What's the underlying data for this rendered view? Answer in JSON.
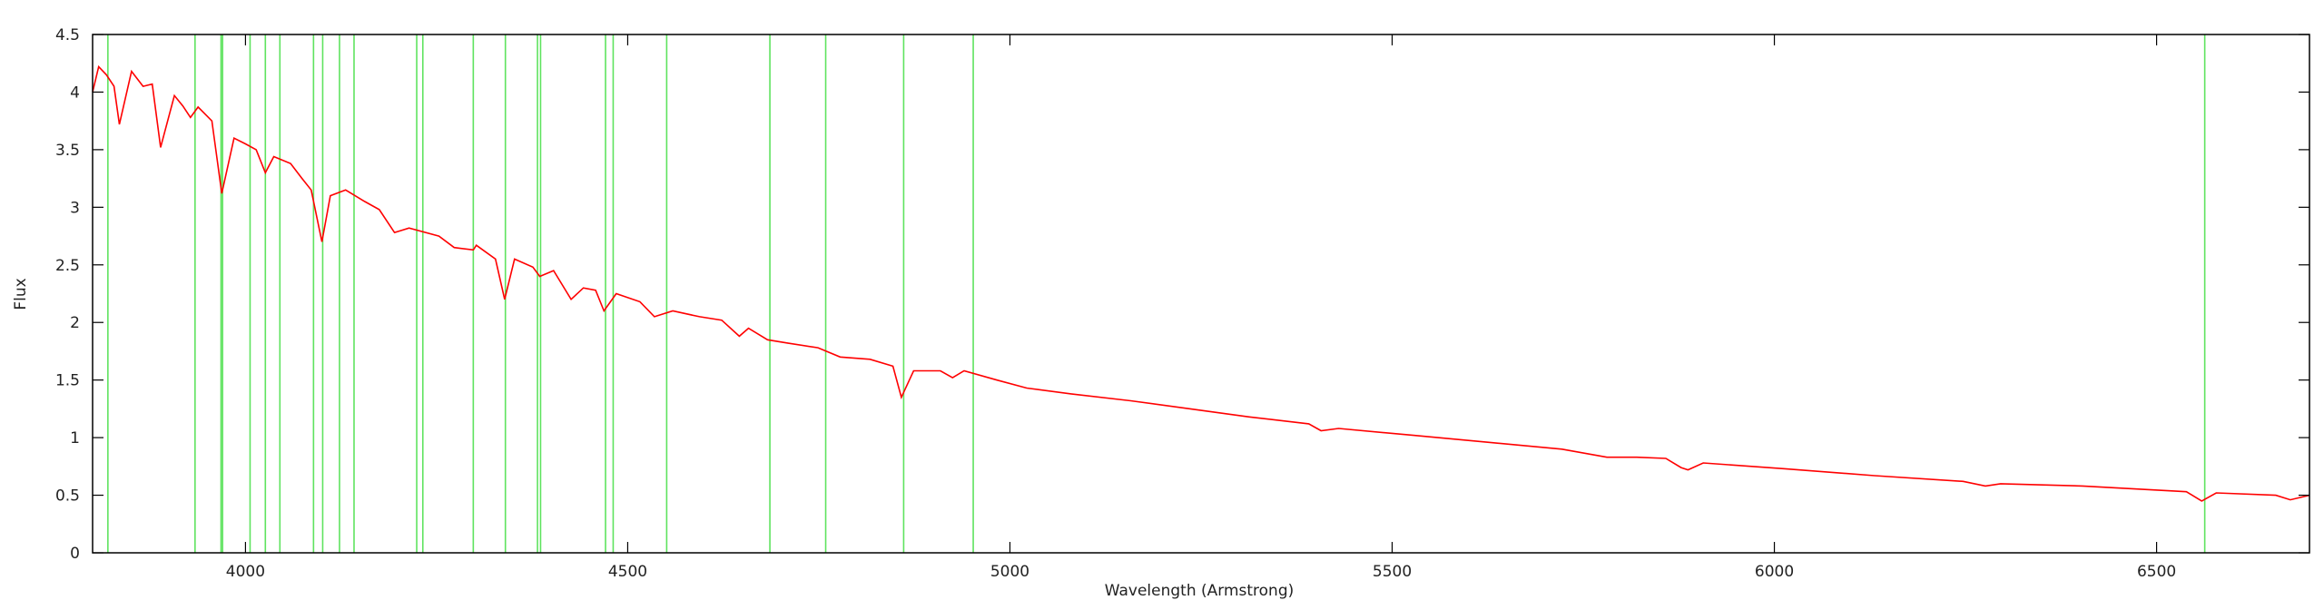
{
  "chart_data": {
    "type": "line",
    "xlabel": "Wavelength (Armstrong)",
    "ylabel": "Flux",
    "xlim": [
      3800,
      6700
    ],
    "ylim": [
      0,
      4.5
    ],
    "xticks": [
      4000,
      4500,
      5000,
      5500,
      6000,
      6500
    ],
    "yticks": [
      0,
      0.5,
      1,
      1.5,
      2,
      2.5,
      3,
      3.5,
      4,
      4.5
    ],
    "line_color": "#5fe35f",
    "lines": [
      3820,
      3934,
      3968,
      3970,
      4006,
      4026,
      4045,
      4089,
      4101,
      4123,
      4142,
      4224,
      4232,
      4298,
      4340,
      4382,
      4386,
      4471,
      4481,
      4551,
      4686,
      4759,
      4861,
      4952,
      6563
    ],
    "series": [
      {
        "color": "#ff0000",
        "x": [
          3800,
          3808,
          3818,
          3828,
          3835,
          3851,
          3866,
          3878,
          3889,
          3907,
          3918,
          3928,
          3938,
          3956,
          3969,
          3985,
          4000,
          4014,
          4026,
          4037,
          4059,
          4074,
          4086,
          4100,
          4111,
          4131,
          4156,
          4175,
          4195,
          4214,
          4253,
          4273,
          4298,
          4302,
          4327,
          4339,
          4352,
          4376,
          4385,
          4403,
          4426,
          4442,
          4458,
          4469,
          4485,
          4516,
          4535,
          4559,
          4594,
          4623,
          4646,
          4658,
          4683,
          4710,
          4749,
          4778,
          4817,
          4847,
          4858,
          4874,
          4909,
          4925,
          4940,
          4983,
          5022,
          5080,
          5158,
          5236,
          5313,
          5391,
          5407,
          5430,
          5528,
          5625,
          5722,
          5781,
          5820,
          5858,
          5878,
          5887,
          5907,
          6014,
          6131,
          6247,
          6276,
          6296,
          6403,
          6539,
          6559,
          6578,
          6656,
          6675,
          6700
        ],
        "values": [
          4.0,
          4.22,
          4.15,
          4.05,
          3.72,
          4.18,
          4.05,
          4.07,
          3.52,
          3.97,
          3.88,
          3.78,
          3.87,
          3.75,
          3.12,
          3.6,
          3.55,
          3.5,
          3.3,
          3.44,
          3.38,
          3.25,
          3.15,
          2.7,
          3.1,
          3.15,
          3.05,
          2.98,
          2.78,
          2.82,
          2.75,
          2.65,
          2.63,
          2.67,
          2.55,
          2.2,
          2.55,
          2.48,
          2.4,
          2.45,
          2.2,
          2.3,
          2.28,
          2.1,
          2.25,
          2.18,
          2.05,
          2.1,
          2.05,
          2.02,
          1.88,
          1.95,
          1.85,
          1.82,
          1.78,
          1.7,
          1.68,
          1.62,
          1.35,
          1.58,
          1.58,
          1.52,
          1.58,
          1.5,
          1.43,
          1.38,
          1.32,
          1.25,
          1.18,
          1.12,
          1.06,
          1.08,
          1.02,
          0.96,
          0.9,
          0.83,
          0.83,
          0.82,
          0.74,
          0.72,
          0.78,
          0.73,
          0.67,
          0.62,
          0.58,
          0.6,
          0.58,
          0.53,
          0.45,
          0.52,
          0.5,
          0.46,
          0.5
        ]
      }
    ]
  }
}
